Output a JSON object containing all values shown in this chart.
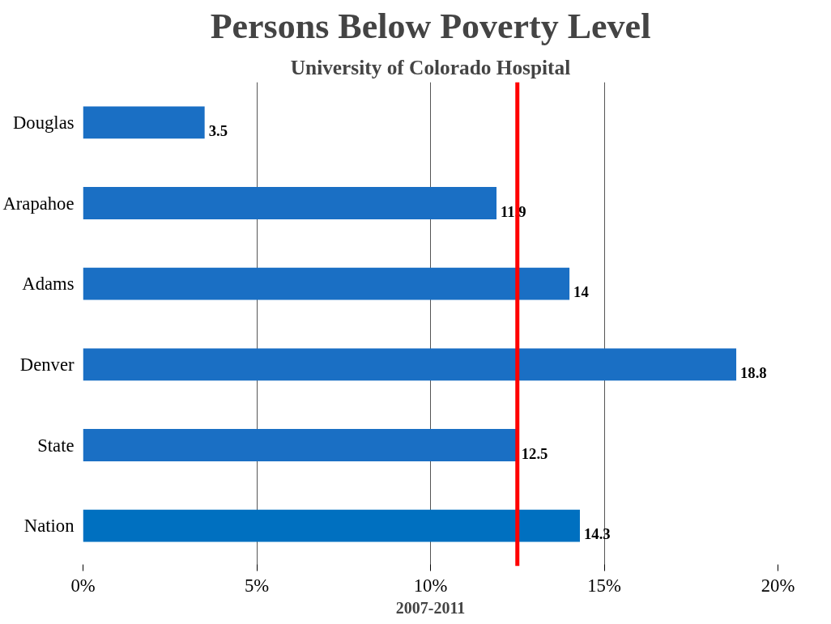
{
  "chart_data": {
    "type": "bar",
    "orientation": "horizontal",
    "title": "Persons Below Poverty Level",
    "subtitle": "University of Colorado Hospital",
    "xlabel": "2007-2011",
    "categories": [
      "Douglas",
      "Arapahoe",
      "Adams",
      "Denver",
      "State",
      "Nation"
    ],
    "values": [
      3.5,
      11.9,
      14,
      18.8,
      12.5,
      14.3
    ],
    "colors": [
      "#1a6fc4",
      "#1a6fc4",
      "#1a6fc4",
      "#1a6fc4",
      "#1a6fc4",
      "#0070c0"
    ],
    "xlim": [
      0,
      20
    ],
    "xticks": [
      {
        "value": 0,
        "label": "0%"
      },
      {
        "value": 5,
        "label": "5%"
      },
      {
        "value": 10,
        "label": "10%"
      },
      {
        "value": 15,
        "label": "15%"
      },
      {
        "value": 20,
        "label": "20%"
      }
    ],
    "grid": "x",
    "data_labels": true,
    "ref_lines": [
      {
        "axis": "x",
        "value": 12.5,
        "color": "#ff0000"
      }
    ]
  }
}
